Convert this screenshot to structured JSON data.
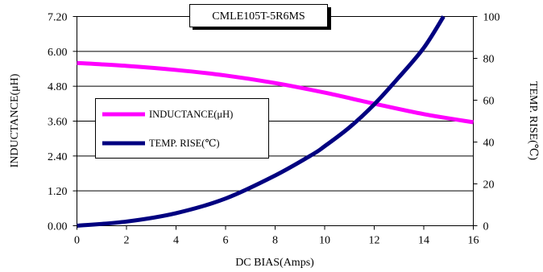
{
  "chart_data": {
    "type": "line",
    "title": "CMLE105T-5R6MS",
    "xlabel": "DC BIAS(Amps)",
    "ylabel_left": "INDUCTANCE(μH)",
    "ylabel_right": "TEMP. RISE(℃)",
    "xlim": [
      0,
      16
    ],
    "ylim_left": [
      0,
      7.2
    ],
    "ylim_right": [
      0,
      100
    ],
    "x_ticks": [
      "0",
      "2",
      "4",
      "6",
      "8",
      "10",
      "12",
      "14",
      "16"
    ],
    "y_left_ticks": [
      "0.00",
      "1.20",
      "2.40",
      "3.60",
      "4.80",
      "6.00",
      "7.20"
    ],
    "y_right_ticks": [
      "0",
      "20",
      "40",
      "60",
      "80",
      "100"
    ],
    "grid": "horizontal",
    "legend_position": "center-left",
    "series": [
      {
        "name": "INDUCTANCE(μH)",
        "axis": "left",
        "color": "#ff00ff",
        "x": [
          0,
          2,
          4,
          6,
          8,
          10,
          12,
          14,
          16
        ],
        "values": [
          5.6,
          5.5,
          5.36,
          5.17,
          4.91,
          4.58,
          4.2,
          3.84,
          3.56
        ]
      },
      {
        "name": "TEMP. RISE(℃)",
        "axis": "right",
        "color": "#000080",
        "x": [
          0,
          2,
          4,
          6,
          8,
          9.5,
          10,
          11,
          12,
          13,
          14,
          14.8
        ],
        "values": [
          0,
          2,
          6,
          13,
          24,
          34,
          38,
          47,
          58,
          71,
          85,
          100
        ]
      }
    ]
  }
}
